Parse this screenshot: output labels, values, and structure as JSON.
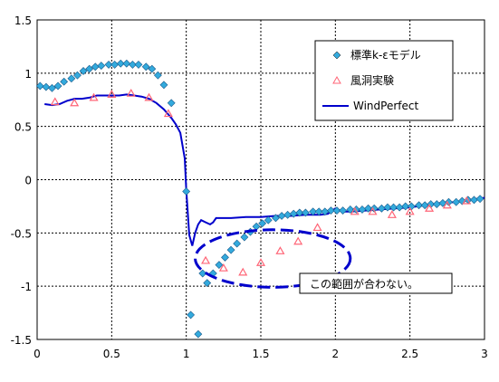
{
  "chart_data": {
    "type": "scatter",
    "title": "",
    "xlabel": "",
    "ylabel": "",
    "xlim": [
      0,
      3
    ],
    "ylim": [
      -1.5,
      1.5
    ],
    "x_ticks": [
      "0",
      "0.5",
      "1",
      "1.5",
      "2",
      "2.5",
      "3"
    ],
    "y_ticks": [
      "1.5",
      "1",
      "0.5",
      "0",
      "-0.5",
      "-1",
      "-1.5"
    ],
    "grid": "dotted",
    "legend_position": "top-right",
    "series": [
      {
        "name": "標準k-εモデル",
        "marker": "diamond",
        "color": "#33aadd",
        "points": [
          [
            0.02,
            0.88
          ],
          [
            0.06,
            0.87
          ],
          [
            0.1,
            0.86
          ],
          [
            0.14,
            0.88
          ],
          [
            0.18,
            0.92
          ],
          [
            0.23,
            0.95
          ],
          [
            0.27,
            0.98
          ],
          [
            0.31,
            1.02
          ],
          [
            0.35,
            1.04
          ],
          [
            0.39,
            1.06
          ],
          [
            0.43,
            1.07
          ],
          [
            0.48,
            1.08
          ],
          [
            0.52,
            1.08
          ],
          [
            0.56,
            1.09
          ],
          [
            0.6,
            1.09
          ],
          [
            0.64,
            1.08
          ],
          [
            0.68,
            1.08
          ],
          [
            0.73,
            1.06
          ],
          [
            0.77,
            1.04
          ],
          [
            0.81,
            0.98
          ],
          [
            0.85,
            0.89
          ],
          [
            0.9,
            0.72
          ],
          [
            1.0,
            -0.11
          ],
          [
            1.03,
            -1.27
          ],
          [
            1.08,
            -1.45
          ],
          [
            1.11,
            -0.88
          ],
          [
            1.14,
            -0.97
          ],
          [
            1.18,
            -0.88
          ],
          [
            1.22,
            -0.8
          ],
          [
            1.26,
            -0.73
          ],
          [
            1.3,
            -0.66
          ],
          [
            1.34,
            -0.6
          ],
          [
            1.39,
            -0.54
          ],
          [
            1.43,
            -0.49
          ],
          [
            1.47,
            -0.44
          ],
          [
            1.51,
            -0.41
          ],
          [
            1.55,
            -0.38
          ],
          [
            1.6,
            -0.36
          ],
          [
            1.64,
            -0.34
          ],
          [
            1.68,
            -0.33
          ],
          [
            1.72,
            -0.32
          ],
          [
            1.76,
            -0.31
          ],
          [
            1.8,
            -0.31
          ],
          [
            1.85,
            -0.3
          ],
          [
            1.89,
            -0.3
          ],
          [
            1.93,
            -0.3
          ],
          [
            1.97,
            -0.29
          ],
          [
            2.01,
            -0.29
          ],
          [
            2.05,
            -0.29
          ],
          [
            2.1,
            -0.28
          ],
          [
            2.14,
            -0.28
          ],
          [
            2.18,
            -0.28
          ],
          [
            2.22,
            -0.27
          ],
          [
            2.26,
            -0.27
          ],
          [
            2.31,
            -0.27
          ],
          [
            2.35,
            -0.26
          ],
          [
            2.39,
            -0.26
          ],
          [
            2.43,
            -0.26
          ],
          [
            2.47,
            -0.25
          ],
          [
            2.51,
            -0.25
          ],
          [
            2.56,
            -0.24
          ],
          [
            2.6,
            -0.24
          ],
          [
            2.64,
            -0.23
          ],
          [
            2.68,
            -0.23
          ],
          [
            2.72,
            -0.22
          ],
          [
            2.76,
            -0.21
          ],
          [
            2.81,
            -0.21
          ],
          [
            2.85,
            -0.2
          ],
          [
            2.89,
            -0.19
          ],
          [
            2.93,
            -0.19
          ],
          [
            2.97,
            -0.18
          ]
        ]
      },
      {
        "name": "風洞実験",
        "marker": "triangle",
        "color": "#ff6677",
        "points": [
          [
            0.12,
            0.73
          ],
          [
            0.25,
            0.72
          ],
          [
            0.38,
            0.77
          ],
          [
            0.5,
            0.8
          ],
          [
            0.63,
            0.81
          ],
          [
            0.75,
            0.77
          ],
          [
            0.88,
            0.62
          ],
          [
            1.13,
            -0.76
          ],
          [
            1.25,
            -0.83
          ],
          [
            1.38,
            -0.87
          ],
          [
            1.5,
            -0.78
          ],
          [
            1.63,
            -0.67
          ],
          [
            1.75,
            -0.58
          ],
          [
            1.88,
            -0.45
          ],
          [
            2.13,
            -0.3
          ],
          [
            2.25,
            -0.3
          ],
          [
            2.38,
            -0.33
          ],
          [
            2.5,
            -0.3
          ],
          [
            2.63,
            -0.27
          ],
          [
            2.75,
            -0.24
          ],
          [
            2.88,
            -0.2
          ]
        ]
      },
      {
        "name": "WindPerfect",
        "marker": "line",
        "color": "#0000cc",
        "points": [
          [
            0.05,
            0.71
          ],
          [
            0.1,
            0.7
          ],
          [
            0.15,
            0.71
          ],
          [
            0.2,
            0.74
          ],
          [
            0.25,
            0.76
          ],
          [
            0.3,
            0.76
          ],
          [
            0.35,
            0.77
          ],
          [
            0.4,
            0.79
          ],
          [
            0.45,
            0.79
          ],
          [
            0.5,
            0.79
          ],
          [
            0.55,
            0.79
          ],
          [
            0.6,
            0.8
          ],
          [
            0.65,
            0.79
          ],
          [
            0.7,
            0.78
          ],
          [
            0.75,
            0.76
          ],
          [
            0.8,
            0.72
          ],
          [
            0.85,
            0.66
          ],
          [
            0.9,
            0.58
          ],
          [
            0.93,
            0.52
          ],
          [
            0.96,
            0.44
          ],
          [
            0.99,
            0.2
          ],
          [
            1.0,
            -0.1
          ],
          [
            1.02,
            -0.52
          ],
          [
            1.04,
            -0.62
          ],
          [
            1.06,
            -0.5
          ],
          [
            1.08,
            -0.42
          ],
          [
            1.1,
            -0.38
          ],
          [
            1.13,
            -0.4
          ],
          [
            1.16,
            -0.42
          ],
          [
            1.18,
            -0.4
          ],
          [
            1.2,
            -0.36
          ],
          [
            1.25,
            -0.36
          ],
          [
            1.3,
            -0.36
          ],
          [
            1.4,
            -0.35
          ],
          [
            1.5,
            -0.35
          ],
          [
            1.6,
            -0.34
          ],
          [
            1.7,
            -0.34
          ],
          [
            1.8,
            -0.33
          ],
          [
            1.9,
            -0.33
          ],
          [
            1.95,
            -0.32
          ],
          [
            2.0,
            -0.27
          ],
          [
            2.05,
            -0.3
          ],
          [
            2.1,
            -0.3
          ],
          [
            2.2,
            -0.29
          ],
          [
            2.3,
            -0.28
          ],
          [
            2.4,
            -0.27
          ],
          [
            2.5,
            -0.26
          ],
          [
            2.6,
            -0.24
          ],
          [
            2.7,
            -0.22
          ],
          [
            2.8,
            -0.21
          ],
          [
            2.9,
            -0.19
          ],
          [
            3.0,
            -0.17
          ]
        ]
      }
    ],
    "annotation": {
      "text": "この範囲が合わない。",
      "ellipse_color": "#0000cc",
      "ellipse_center": [
        1.58,
        -0.74
      ],
      "ellipse_radius": [
        0.52,
        0.27
      ]
    }
  }
}
